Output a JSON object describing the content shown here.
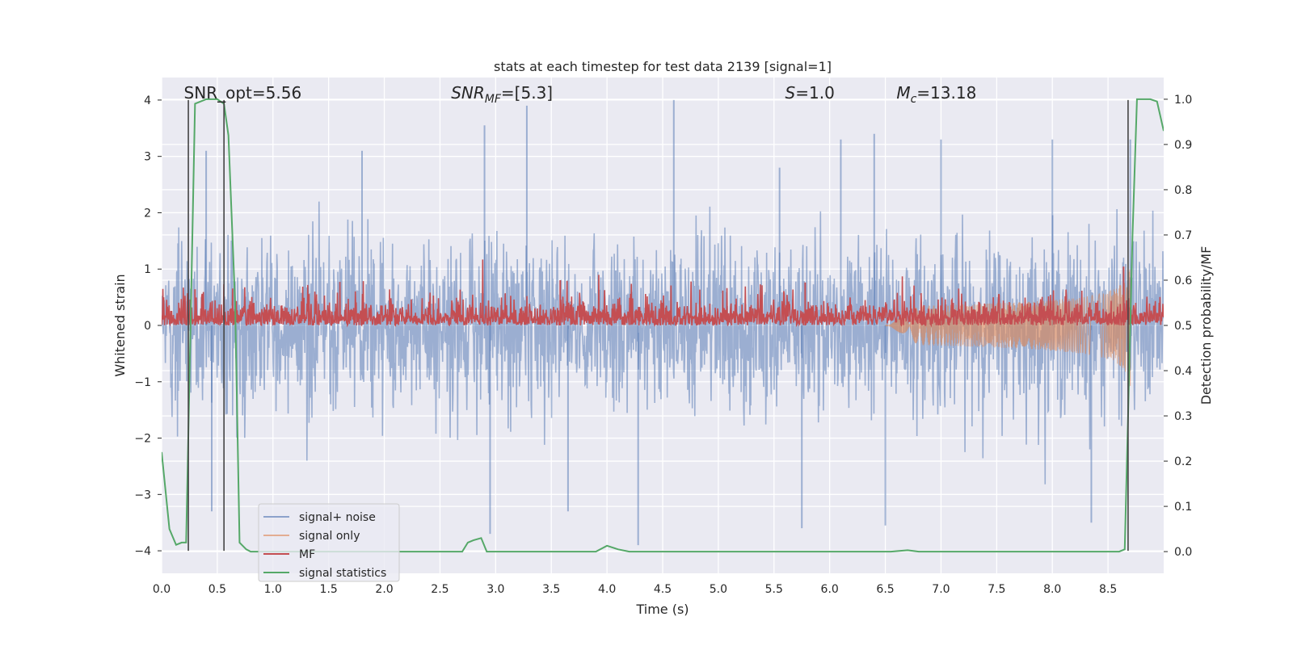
{
  "chart_data": {
    "type": "line",
    "title": "stats at each timestep for test data 2139 [signal=1]",
    "xlabel": "Time (s)",
    "ylabel": "Whitened strain",
    "y2label": "Detection probability/MF",
    "xlim": [
      0,
      9
    ],
    "ylim": [
      -4.4,
      4.4
    ],
    "y2lim": [
      -0.048,
      1.048
    ],
    "xticks": [
      "0.0",
      "0.5",
      "1.0",
      "1.5",
      "2.0",
      "2.5",
      "3.0",
      "3.5",
      "4.0",
      "4.5",
      "5.0",
      "5.5",
      "6.0",
      "6.5",
      "7.0",
      "7.5",
      "8.0",
      "8.5"
    ],
    "yticks": [
      "-4",
      "-3",
      "-2",
      "-1",
      "0",
      "1",
      "2",
      "3",
      "4"
    ],
    "y2ticks": [
      "0.0",
      "0.1",
      "0.2",
      "0.3",
      "0.4",
      "0.5",
      "0.6",
      "0.7",
      "0.8",
      "0.9",
      "1.0"
    ],
    "grid": true,
    "legend_position": "lower-left",
    "annotations": [
      {
        "plain": "SNR_opt=5.56",
        "x": 0.2,
        "y": 4.0
      },
      {
        "sym": "SNR",
        "sub": "MF",
        "rest": "=[5.3]",
        "x": 2.6,
        "y": 4.0
      },
      {
        "sym": "S",
        "sub": "",
        "rest": "=1.0",
        "x": 5.6,
        "y": 4.0
      },
      {
        "sym": "M",
        "sub": "c",
        "rest": "=13.18",
        "x": 6.6,
        "y": 4.0
      }
    ],
    "vlines": [
      {
        "x": 0.24,
        "ymin": -4,
        "ymax": 4
      },
      {
        "x": 0.56,
        "ymin": -4,
        "ymax": 4
      },
      {
        "x": 8.68,
        "ymin": -4,
        "ymax": 4
      }
    ],
    "series": [
      {
        "name": "signal+ noise",
        "axis": "left",
        "color": "#4c72b0",
        "alpha": 0.5,
        "kind": "noise",
        "envelope_sigma": 0.75,
        "peaks": [
          [
            2.9,
            3.55
          ],
          [
            3.28,
            3.9
          ],
          [
            4.6,
            4.0
          ],
          [
            5.55,
            2.8
          ],
          [
            6.1,
            3.3
          ],
          [
            6.4,
            3.4
          ],
          [
            7.0,
            3.3
          ],
          [
            8.0,
            3.3
          ],
          [
            8.7,
            3.3
          ],
          [
            0.4,
            3.1
          ],
          [
            1.8,
            3.1
          ],
          [
            4.28,
            -3.9
          ],
          [
            2.95,
            -3.7
          ],
          [
            5.75,
            -3.6
          ],
          [
            6.5,
            -3.55
          ],
          [
            8.35,
            -3.5
          ],
          [
            3.65,
            -3.3
          ],
          [
            0.45,
            -3.3
          ]
        ]
      },
      {
        "name": "signal only",
        "axis": "left",
        "color": "#dd8452",
        "alpha": 0.6,
        "kind": "chirp",
        "start": 6.5,
        "end": 8.7,
        "amp_end": 1.1
      },
      {
        "name": "MF",
        "axis": "right",
        "color": "#c44e52",
        "kind": "mf",
        "base": 0.5,
        "level": 0.53,
        "spread": 0.015,
        "spike_max": 0.605,
        "peaks": [
          [
            3.58,
            0.6
          ],
          [
            0.3,
            0.58
          ],
          [
            5.78,
            0.595
          ],
          [
            8.64,
            0.63
          ]
        ]
      },
      {
        "name": "signal statistics",
        "axis": "right",
        "color": "#55a868",
        "kind": "line",
        "x": [
          0.0,
          0.07,
          0.13,
          0.18,
          0.22,
          0.26,
          0.3,
          0.4,
          0.5,
          0.56,
          0.6,
          0.66,
          0.7,
          0.76,
          0.8,
          0.9,
          1.0,
          2.0,
          2.7,
          2.75,
          2.8,
          2.87,
          2.92,
          3.0,
          3.5,
          3.9,
          4.0,
          4.1,
          4.2,
          5.0,
          6.0,
          6.55,
          6.7,
          6.8,
          7.0,
          8.0,
          8.6,
          8.65,
          8.68,
          8.72,
          8.76,
          8.82,
          8.88,
          8.94,
          9.0
        ],
        "y": [
          0.22,
          0.05,
          0.015,
          0.02,
          0.02,
          0.5,
          0.99,
          1.0,
          1.0,
          0.99,
          0.92,
          0.55,
          0.02,
          0.005,
          0.0,
          0.0,
          0.0,
          0.0,
          0.0,
          0.02,
          0.025,
          0.03,
          0.0,
          0.0,
          0.0,
          0.0,
          0.013,
          0.005,
          0.0,
          0.0,
          0.0,
          0.0,
          0.003,
          0.0,
          0.0,
          0.0,
          0.0,
          0.005,
          0.3,
          0.7,
          1.0,
          1.0,
          1.0,
          0.995,
          0.93
        ]
      }
    ]
  }
}
